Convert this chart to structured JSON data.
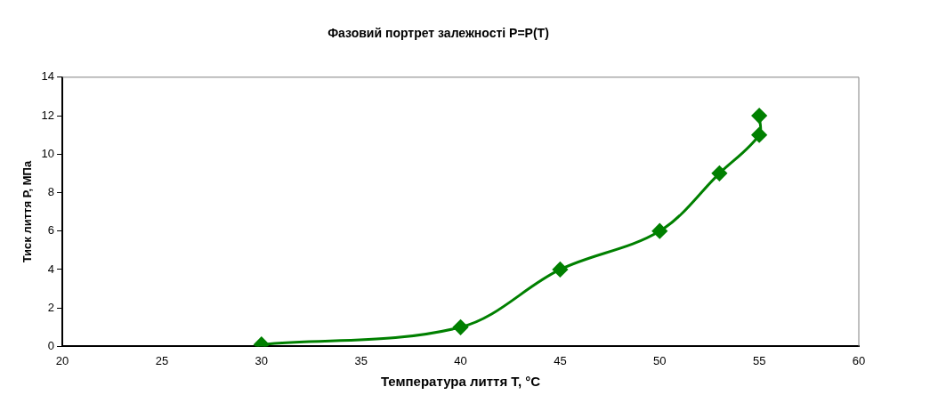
{
  "chart_data": {
    "type": "line",
    "title": "Фазовий портрет залежності P=P(T)",
    "xlabel": "Температура лиття Т, °C",
    "ylabel": "Тиск лиття Р, МПа",
    "x": [
      30,
      40,
      45,
      50,
      53,
      55,
      55
    ],
    "series": [
      {
        "color": "#008000",
        "values": [
          0.1,
          1,
          4,
          6,
          9,
          11,
          12
        ]
      }
    ],
    "xlim": [
      20,
      60
    ],
    "xticks": [
      20,
      25,
      30,
      35,
      40,
      45,
      50,
      55,
      60
    ],
    "ylim": [
      0,
      14
    ],
    "yticks": [
      0,
      2,
      4,
      6,
      8,
      10,
      12,
      14
    ],
    "grid": false,
    "legend": false,
    "marker": "diamond",
    "line_style": "solid"
  }
}
